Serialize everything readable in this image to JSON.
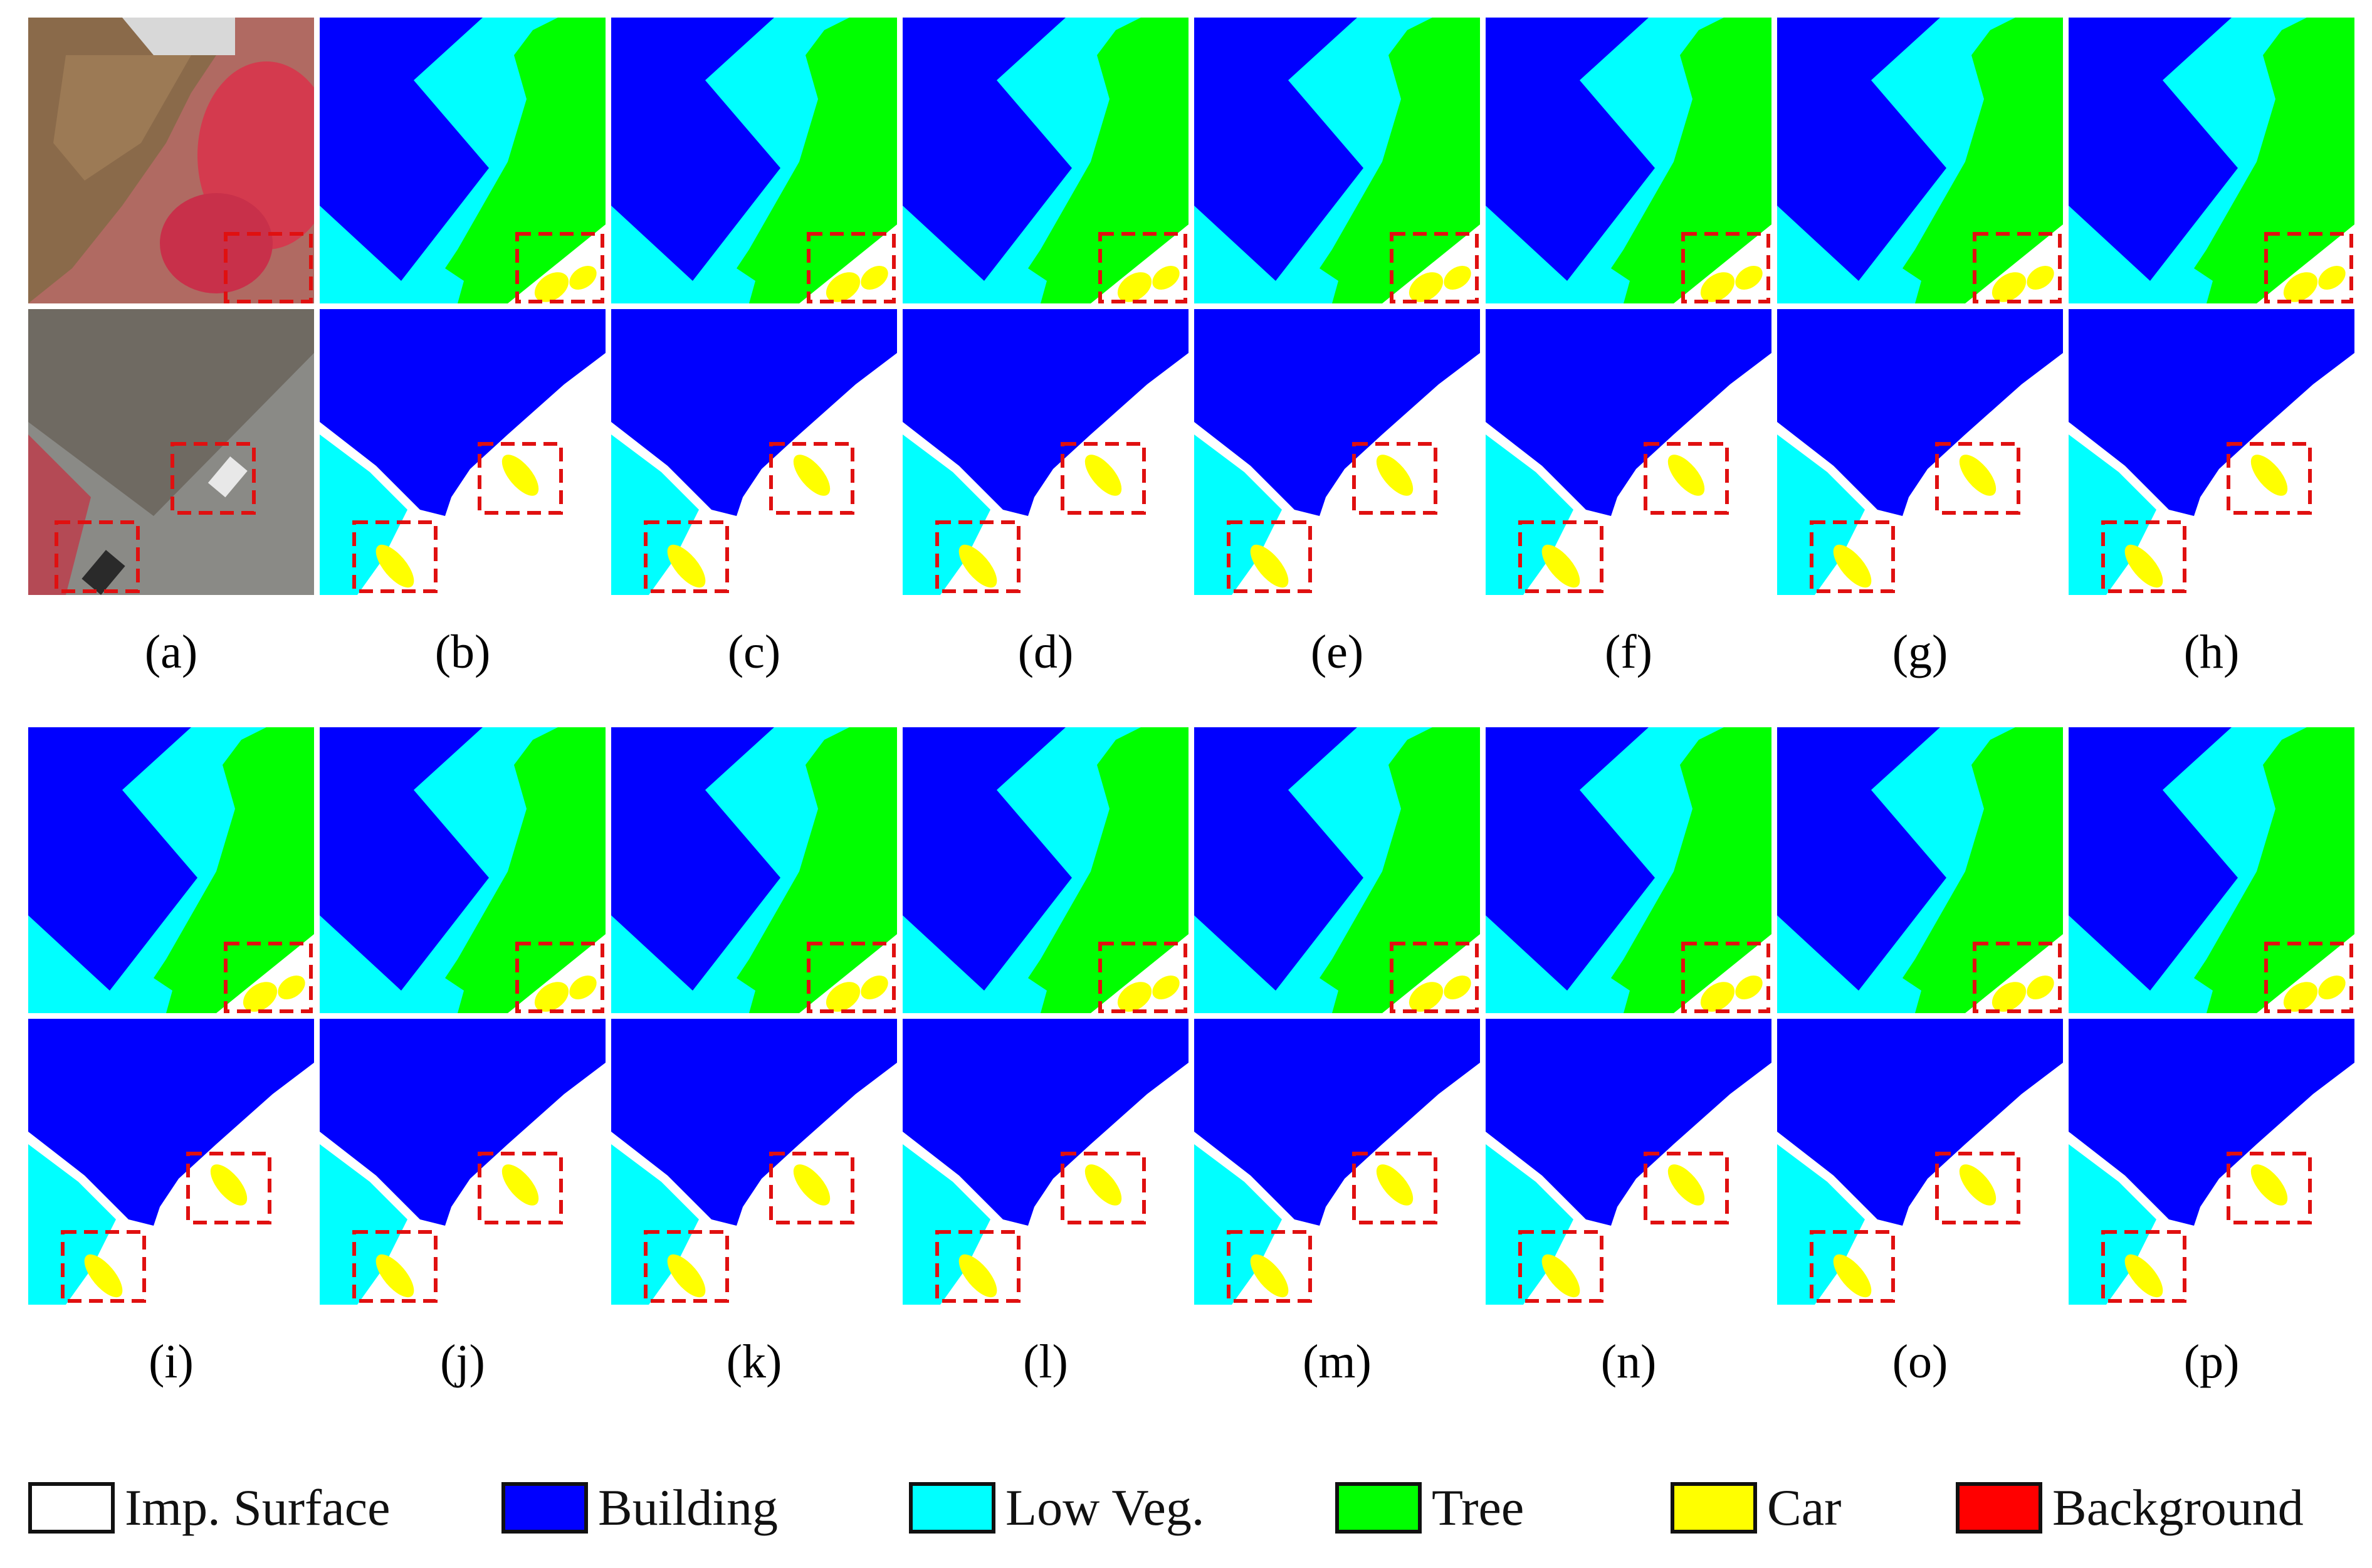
{
  "figure": {
    "panel_labels": [
      "(a)",
      "(b)",
      "(c)",
      "(d)",
      "(e)",
      "(f)",
      "(g)",
      "(h)",
      "(i)",
      "(j)",
      "(k)",
      "(l)",
      "(m)",
      "(n)",
      "(o)",
      "(p)"
    ]
  },
  "legend": {
    "items": [
      {
        "label": "Imp. Surface",
        "color": "#ffffff"
      },
      {
        "label": "Building",
        "color": "#0000ff"
      },
      {
        "label": "Low Veg.",
        "color": "#00ffff"
      },
      {
        "label": "Tree",
        "color": "#00ff00"
      },
      {
        "label": "Car",
        "color": "#ffff00"
      },
      {
        "label": "Background",
        "color": "#ff0000"
      }
    ]
  },
  "colors": {
    "zoom_box": "#e01010"
  }
}
